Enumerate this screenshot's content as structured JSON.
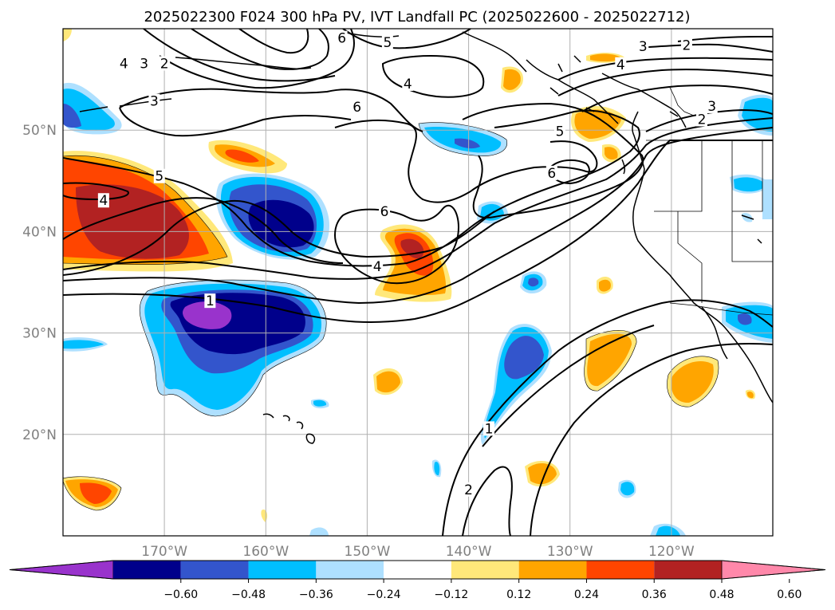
{
  "title": "2025022300 F024 300 hPa PV, IVT Landfall PC (2025022600 - 2025022712)",
  "map": {
    "lon_range": [
      -180,
      -110
    ],
    "lat_range": [
      10,
      60
    ],
    "projection": "PlateCarree",
    "lon_ticks": [
      {
        "lon": -170,
        "label": "170°W"
      },
      {
        "lon": -160,
        "label": "160°W"
      },
      {
        "lon": -150,
        "label": "150°W"
      },
      {
        "lon": -140,
        "label": "140°W"
      },
      {
        "lon": -130,
        "label": "130°W"
      },
      {
        "lon": -120,
        "label": "120°W"
      }
    ],
    "lat_ticks": [
      {
        "lat": 50,
        "label": "50°N"
      },
      {
        "lat": 40,
        "label": "40°N"
      },
      {
        "lat": 30,
        "label": "30°N"
      },
      {
        "lat": 20,
        "label": "20°N"
      }
    ],
    "grid": true
  },
  "colorbar": {
    "extend": "both",
    "levels": [
      -0.6,
      -0.48,
      -0.36,
      -0.24,
      -0.12,
      0.12,
      0.24,
      0.36,
      0.48,
      0.6
    ],
    "tick_labels": [
      "−0.60",
      "−0.48",
      "−0.36",
      "−0.24",
      "−0.12",
      "0.12",
      "0.24",
      "0.36",
      "0.48",
      "0.60"
    ],
    "colors": [
      "#9933cc",
      "#00008b",
      "#3355cc",
      "#00bfff",
      "#aee0ff",
      "#ffffff",
      "#ffe87a",
      "#ffa500",
      "#ff4500",
      "#b22222",
      "#ff88aa"
    ]
  },
  "contour_labels": [
    {
      "text": "4",
      "lon": -174,
      "lat": 56.5
    },
    {
      "text": "3",
      "lon": -172,
      "lat": 56.5
    },
    {
      "text": "2",
      "lon": -170,
      "lat": 56.5
    },
    {
      "text": "3",
      "lon": -171,
      "lat": 52.8
    },
    {
      "text": "6",
      "lon": -152.5,
      "lat": 59
    },
    {
      "text": "5",
      "lon": -148,
      "lat": 58.6
    },
    {
      "text": "4",
      "lon": -146,
      "lat": 54.5
    },
    {
      "text": "6",
      "lon": -151,
      "lat": 52.2
    },
    {
      "text": "5",
      "lon": -170.5,
      "lat": 45.4
    },
    {
      "text": "4",
      "lon": -176,
      "lat": 43
    },
    {
      "text": "6",
      "lon": -148.3,
      "lat": 41.9
    },
    {
      "text": "4",
      "lon": -149,
      "lat": 36.5
    },
    {
      "text": "1",
      "lon": -165.5,
      "lat": 33.1
    },
    {
      "text": "5",
      "lon": -131,
      "lat": 49.8
    },
    {
      "text": "6",
      "lon": -131.8,
      "lat": 45.7
    },
    {
      "text": "3",
      "lon": -116,
      "lat": 52.3
    },
    {
      "text": "2",
      "lon": -117,
      "lat": 51
    },
    {
      "text": "4",
      "lon": -125,
      "lat": 56.4
    },
    {
      "text": "3",
      "lon": -122.8,
      "lat": 58.2
    },
    {
      "text": "2",
      "lon": -118.5,
      "lat": 58.3
    },
    {
      "text": "1",
      "lon": -138,
      "lat": 20.5
    },
    {
      "text": "2",
      "lon": -140,
      "lat": 14.5
    }
  ]
}
